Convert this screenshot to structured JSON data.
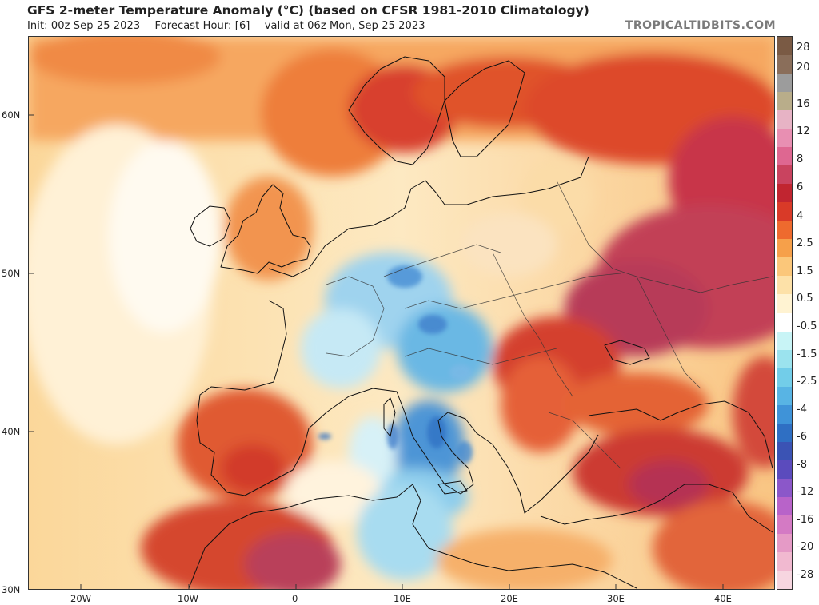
{
  "header": {
    "title": "GFS 2-meter Temperature Anomaly (°C) (based on CFSR 1981-2010 Climatology)",
    "init": "Init: 00z Sep 25 2023",
    "forecast_hour": "Forecast Hour: [6]",
    "valid": "valid at 06z Mon, Sep 25 2023",
    "brand": "TROPICALTIDBITS.COM"
  },
  "axes": {
    "lat_labels": [
      "60N",
      "50N",
      "40N",
      "30N"
    ],
    "lon_labels": [
      "20W",
      "10W",
      "0",
      "10E",
      "20E",
      "30E",
      "40E"
    ]
  },
  "colorbar": {
    "labels": [
      "28",
      "20",
      "16",
      "12",
      "8",
      "6",
      "4",
      "2.5",
      "1.5",
      "0.5",
      "-0.5",
      "-1.5",
      "-2.5",
      "-4",
      "-6",
      "-8",
      "-12",
      "-16",
      "-20",
      "-28"
    ],
    "colors": [
      "#7a5a44",
      "#8a6e5a",
      "#9c9c9c",
      "#b9ad8a",
      "#e7b3c5",
      "#e88fb2",
      "#de6791",
      "#c9435f",
      "#c12530",
      "#d93a28",
      "#ee6a2e",
      "#f6a04a",
      "#fbc77a",
      "#fde1a8",
      "#fff3d2",
      "#ffffff",
      "#c8f4f6",
      "#9be3ee",
      "#72cde9",
      "#58b4e4",
      "#3f93d8",
      "#2f6fc3",
      "#3b53b4",
      "#5b4bbd",
      "#8b57c9",
      "#b863c9",
      "#d47ac4",
      "#e59ac6",
      "#f1b9d0",
      "#f7d6e0"
    ]
  }
}
